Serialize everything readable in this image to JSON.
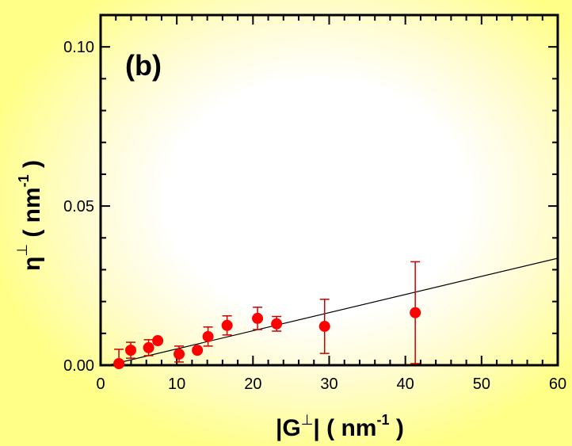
{
  "chart_data": {
    "type": "scatter",
    "title": "",
    "panel_label": "(b)",
    "xlabel": {
      "prefix": "|G",
      "sup": "⊥",
      "suffix": "|  ( nm",
      "unit_sup": "-1",
      "close": " )"
    },
    "ylabel": {
      "prefix": "η",
      "sup": "⊥",
      "suffix": " ( nm",
      "unit_sup": "-1",
      "close": " )"
    },
    "xlim": [
      0,
      60
    ],
    "ylim": [
      0,
      0.11
    ],
    "x_ticks": [
      0,
      10,
      20,
      30,
      40,
      50,
      60
    ],
    "x_tick_labels": [
      "0",
      "10",
      "20",
      "30",
      "40",
      "50",
      "60"
    ],
    "y_ticks": [
      0.0,
      0.05,
      0.1
    ],
    "y_tick_labels": [
      "0.00",
      "0.05",
      "0.10"
    ],
    "grid": false,
    "series": [
      {
        "name": "data",
        "color": "#ff0000",
        "errorbar_color": "#cc0000",
        "x": [
          2.4,
          3.95,
          6.3,
          7.5,
          10.3,
          12.7,
          14.1,
          16.6,
          20.6,
          23.1,
          29.4,
          41.3
        ],
        "y": [
          0.0005,
          0.0047,
          0.0055,
          0.0077,
          0.0035,
          0.0047,
          0.009,
          0.0125,
          0.0147,
          0.013,
          0.0122,
          0.0165
        ],
        "err": [
          0.0045,
          0.0025,
          0.0025,
          0.0008,
          0.0025,
          0.0005,
          0.003,
          0.003,
          0.0035,
          0.0023,
          0.0085,
          0.016
        ]
      },
      {
        "name": "fit",
        "type": "line",
        "color": "#000000",
        "x": [
          1.0,
          60.0
        ],
        "y": [
          0.0,
          0.0336
        ]
      }
    ]
  }
}
